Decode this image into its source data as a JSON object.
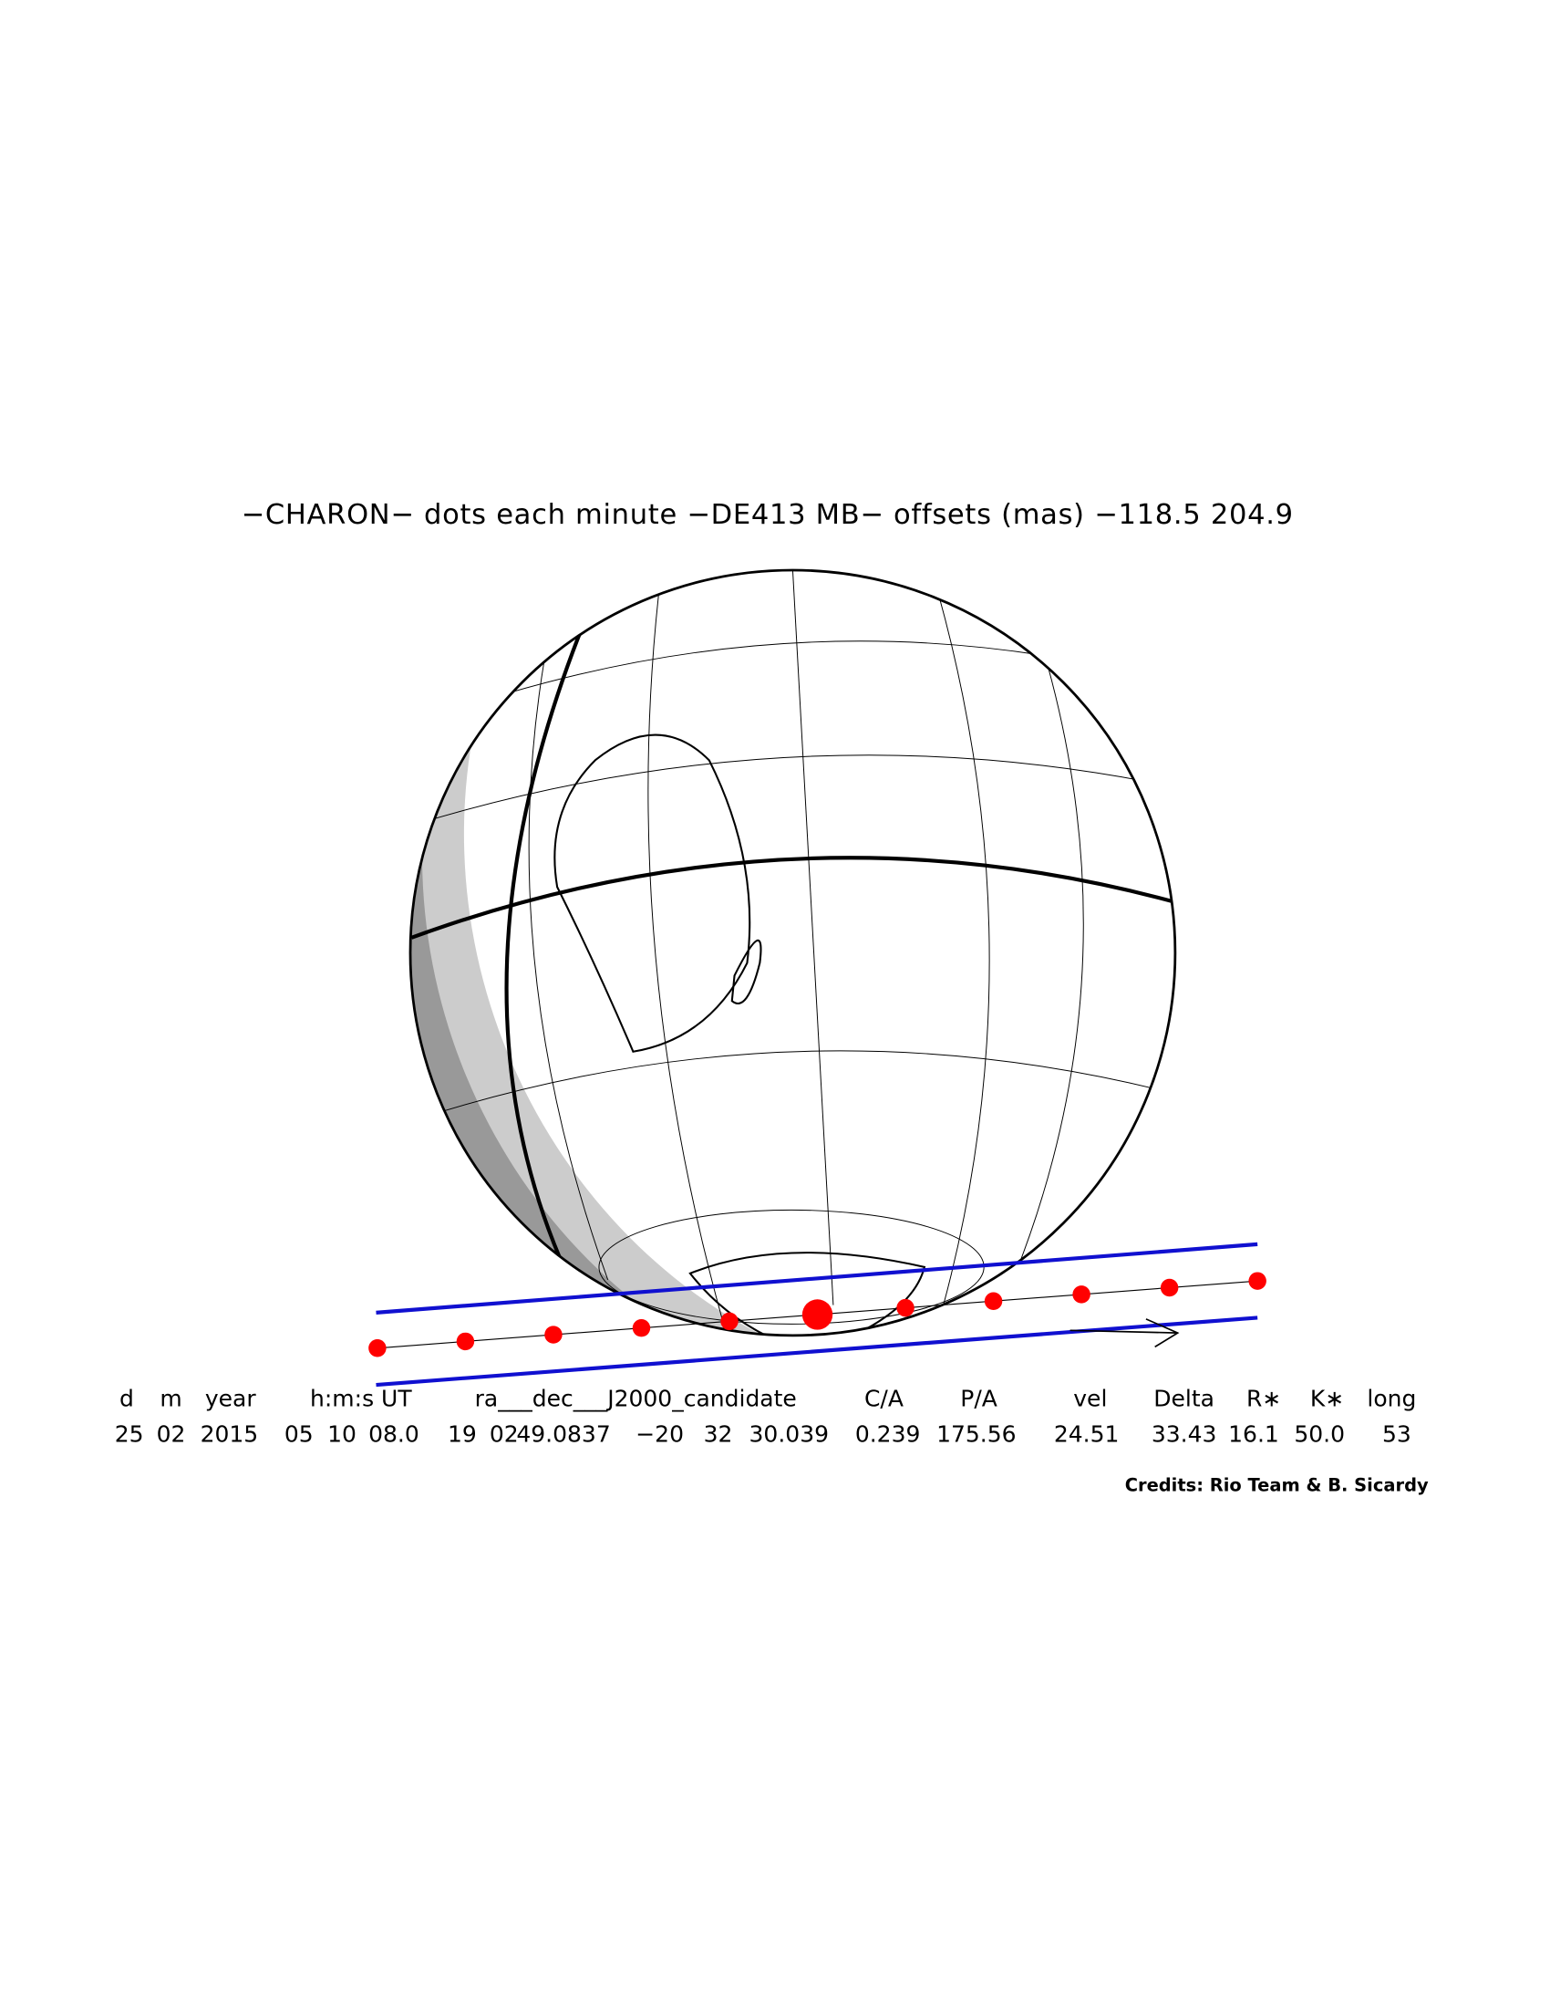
{
  "title": "−CHARON− dots each minute −DE413 MB− offsets (mas) −118.5   204.9",
  "table": {
    "headers": [
      "d",
      "m",
      "year",
      "h:m:s UT",
      "ra___dec___J2000_candidate",
      "C/A",
      "P/A",
      "vel",
      "Delta",
      "R∗",
      "K∗",
      "long"
    ],
    "values": [
      "25",
      "02",
      "2015",
      "05",
      "10",
      "08.0",
      "19",
      "02",
      "49.0837",
      "−20",
      "32",
      "30.039",
      "0.239",
      "175.56",
      "24.51",
      "33.43",
      "16.1",
      "50.0",
      "53"
    ]
  },
  "credits": "Credits: Rio Team & B. Sicardy"
}
